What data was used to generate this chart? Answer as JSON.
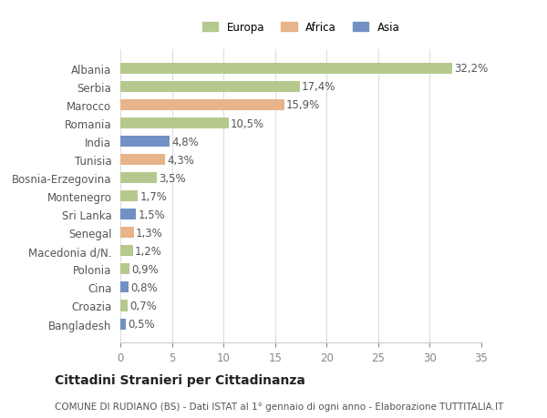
{
  "countries": [
    "Albania",
    "Serbia",
    "Marocco",
    "Romania",
    "India",
    "Tunisia",
    "Bosnia-Erzegovina",
    "Montenegro",
    "Sri Lanka",
    "Senegal",
    "Macedonia d/N.",
    "Polonia",
    "Cina",
    "Croazia",
    "Bangladesh"
  ],
  "values": [
    32.2,
    17.4,
    15.9,
    10.5,
    4.8,
    4.3,
    3.5,
    1.7,
    1.5,
    1.3,
    1.2,
    0.9,
    0.8,
    0.7,
    0.5
  ],
  "labels": [
    "32,2%",
    "17,4%",
    "15,9%",
    "10,5%",
    "4,8%",
    "4,3%",
    "3,5%",
    "1,7%",
    "1,5%",
    "1,3%",
    "1,2%",
    "0,9%",
    "0,8%",
    "0,7%",
    "0,5%"
  ],
  "continents": [
    "Europa",
    "Europa",
    "Africa",
    "Europa",
    "Asia",
    "Africa",
    "Europa",
    "Europa",
    "Asia",
    "Africa",
    "Europa",
    "Europa",
    "Asia",
    "Europa",
    "Asia"
  ],
  "colors": {
    "Europa": "#b5c98e",
    "Africa": "#e8b48a",
    "Asia": "#7191c4"
  },
  "xlim": [
    0,
    35
  ],
  "xticks": [
    0,
    5,
    10,
    15,
    20,
    25,
    30,
    35
  ],
  "title": "Cittadini Stranieri per Cittadinanza",
  "subtitle": "COMUNE DI RUDIANO (BS) - Dati ISTAT al 1° gennaio di ogni anno - Elaborazione TUTTITALIA.IT",
  "background_color": "#ffffff",
  "grid_color": "#dddddd",
  "label_fontsize": 8.5,
  "tick_fontsize": 8.5,
  "title_fontsize": 10,
  "subtitle_fontsize": 7.5
}
